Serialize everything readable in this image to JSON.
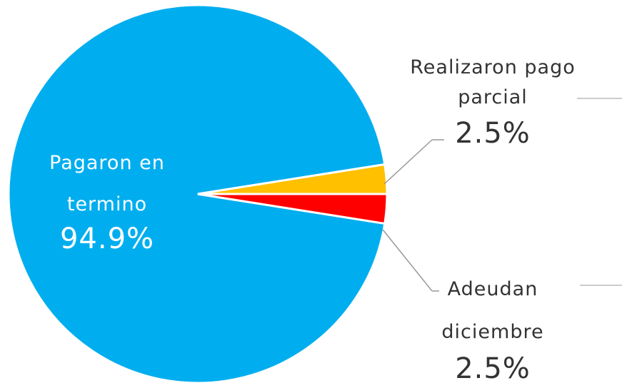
{
  "chart_data": {
    "type": "pie",
    "categories": [
      "Pagaron en termino",
      "Realizaron pago parcial",
      "Adeudan diciembre"
    ],
    "values": [
      94.9,
      2.5,
      2.5
    ],
    "value_labels": [
      "94.9%",
      "2.5%",
      "2.5%"
    ],
    "colors": [
      "#00aeef",
      "#ffc000",
      "#ff0000"
    ]
  }
}
